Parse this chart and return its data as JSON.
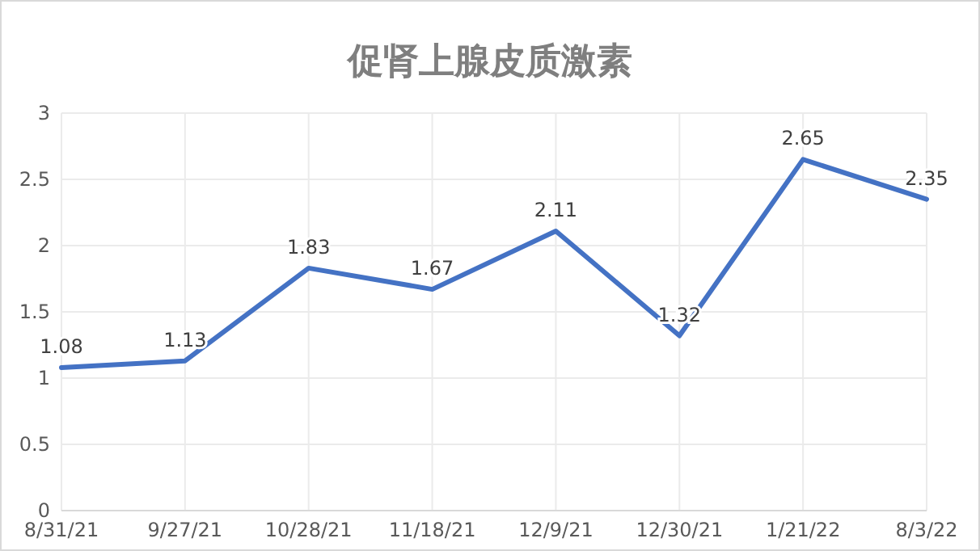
{
  "chart_data": {
    "type": "line",
    "title": "促肾上腺皮质激素",
    "categories": [
      "8/31/21",
      "9/27/21",
      "10/28/21",
      "11/18/21",
      "12/9/21",
      "12/30/21",
      "1/21/22",
      "8/3/22"
    ],
    "series": [
      {
        "color": "#4472c4",
        "values": [
          1.08,
          1.13,
          1.83,
          1.67,
          2.11,
          1.32,
          2.65,
          2.35
        ]
      }
    ],
    "ylim": [
      0,
      3
    ],
    "yticks": [
      0,
      0.5,
      1,
      1.5,
      2,
      2.5,
      3
    ],
    "grid": true,
    "data_labels": true,
    "marker": "none",
    "line_style": "solid"
  }
}
